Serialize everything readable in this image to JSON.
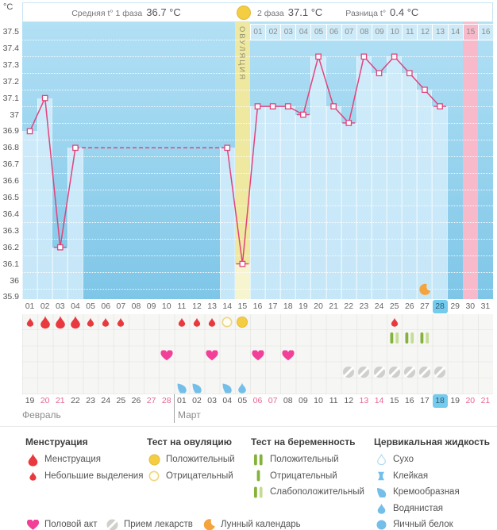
{
  "axis_unit": "°C",
  "header": {
    "phase1_label": "Средняя t° 1 фаза",
    "phase1_value": "36.7 °C",
    "phase2_label": "2 фаза",
    "phase2_value": "37.1 °C",
    "diff_label": "Разница t°",
    "diff_value": "0.4 °C"
  },
  "ovulation_column": {
    "label": "ОВУЛЯЦИЯ",
    "day": 15
  },
  "colors": {
    "accent_pink": "#e0447c",
    "menses_red": "#e9393f",
    "heart_pink": "#f23f97",
    "positive_yellow": "#f4cd43",
    "preg_dark": "#84b23a",
    "preg_light": "#c6dc96",
    "fluid_blue": "#74bfe9",
    "moon_orange": "#f5a33c",
    "today_blue": "#74cbed",
    "weekend_red": "#e8648f",
    "ovulation_column_yellow": "#efe8a0",
    "expected_column_pink": "#f8bacb"
  },
  "chart_data": {
    "type": "line",
    "title": "График базальной температуры",
    "ylabel": "°C",
    "ylim": [
      35.9,
      37.5
    ],
    "grid": "dotted white horizontal lines every 0.1 °C",
    "y_ticks": [
      "37.5",
      "37.4",
      "37.3",
      "37.2",
      "37.1",
      "37",
      "36.9",
      "36.8",
      "36.7",
      "36.6",
      "36.5",
      "36.4",
      "36.3",
      "36.2",
      "36.1",
      "36",
      "35.9"
    ],
    "x_days": [
      "01",
      "02",
      "03",
      "04",
      "05",
      "06",
      "07",
      "08",
      "09",
      "10",
      "11",
      "12",
      "13",
      "14",
      "15",
      "16",
      "17",
      "18",
      "19",
      "20",
      "21",
      "22",
      "23",
      "24",
      "25",
      "26",
      "27",
      "28",
      "29",
      "30",
      "31"
    ],
    "points": [
      {
        "day": 1,
        "t": 36.9
      },
      {
        "day": 2,
        "t": 37.1
      },
      {
        "day": 3,
        "t": 36.2
      },
      {
        "day": 4,
        "t": 36.8
      },
      {
        "day": 14,
        "t": 36.8
      },
      {
        "day": 15,
        "t": 36.1
      },
      {
        "day": 16,
        "t": 37.05
      },
      {
        "day": 17,
        "t": 37.05
      },
      {
        "day": 18,
        "t": 37.05
      },
      {
        "day": 19,
        "t": 37.0
      },
      {
        "day": 20,
        "t": 37.35
      },
      {
        "day": 21,
        "t": 37.05
      },
      {
        "day": 22,
        "t": 36.95
      },
      {
        "day": 23,
        "t": 37.35
      },
      {
        "day": 24,
        "t": 37.25
      },
      {
        "day": 25,
        "t": 37.35
      },
      {
        "day": 26,
        "t": 37.25
      },
      {
        "day": 27,
        "t": 37.15
      },
      {
        "day": 28,
        "t": 37.05
      }
    ],
    "missing_days_dashed_between": [
      4,
      14
    ],
    "underline_marker_days": [
      3,
      15,
      19,
      22,
      28
    ],
    "ovulation_day": 15,
    "expected_column_day": 30,
    "today_day": 28,
    "dpo_labels": [
      "01",
      "02",
      "03",
      "04",
      "05",
      "06",
      "07",
      "08",
      "09",
      "10",
      "11",
      "12",
      "13",
      "14",
      "15",
      "16"
    ],
    "dpo_highlight": "15"
  },
  "events": {
    "menstruation": [
      {
        "day": 1,
        "size": "small"
      },
      {
        "day": 2,
        "size": "large"
      },
      {
        "day": 3,
        "size": "large"
      },
      {
        "day": 4,
        "size": "large"
      },
      {
        "day": 5,
        "size": "small"
      },
      {
        "day": 6,
        "size": "small"
      },
      {
        "day": 7,
        "size": "small"
      },
      {
        "day": 11,
        "size": "small"
      },
      {
        "day": 12,
        "size": "small"
      },
      {
        "day": 13,
        "size": "small"
      },
      {
        "day": 25,
        "size": "small"
      }
    ],
    "ovulation_tests": [
      {
        "day": 14,
        "result": "negative"
      },
      {
        "day": 15,
        "result": "positive"
      }
    ],
    "pregnancy_tests": [
      {
        "day": 25,
        "result": "weak_positive"
      },
      {
        "day": 26,
        "result": "weak_positive"
      },
      {
        "day": 27,
        "result": "weak_positive"
      }
    ],
    "intercourse_days": [
      10,
      13,
      16,
      18
    ],
    "medication_days": [
      22,
      23,
      24,
      25,
      26,
      27,
      28
    ],
    "cervical_fluid": [
      {
        "day": 11,
        "type": "creamy"
      },
      {
        "day": 12,
        "type": "creamy"
      },
      {
        "day": 14,
        "type": "creamy"
      },
      {
        "day": 15,
        "type": "watery"
      }
    ],
    "moon_day": 27
  },
  "calendar": {
    "months": [
      {
        "name": "Февраль",
        "dates": [
          "19",
          "20",
          "21",
          "22",
          "23",
          "24",
          "25",
          "26",
          "27",
          "28"
        ],
        "weekend": [
          "20",
          "21",
          "27",
          "28"
        ]
      },
      {
        "name": "Март",
        "dates": [
          "01",
          "02",
          "03",
          "04",
          "05",
          "06",
          "07",
          "08",
          "09",
          "10",
          "11",
          "12",
          "13",
          "14",
          "15",
          "16",
          "17",
          "18",
          "19",
          "20",
          "21"
        ],
        "weekend": [
          "06",
          "07",
          "13",
          "14",
          "20",
          "21"
        ],
        "today": "18"
      }
    ]
  },
  "legend": {
    "sections": [
      {
        "title": "Менструация",
        "items": [
          {
            "icon": "drop-large",
            "label": "Менструация"
          },
          {
            "icon": "drop-small",
            "label": "Небольшие выделения"
          }
        ]
      },
      {
        "title": "Тест на овуляцию",
        "items": [
          {
            "icon": "circle-filled",
            "label": "Положительный"
          },
          {
            "icon": "circle-outline",
            "label": "Отрицательный"
          }
        ]
      },
      {
        "title": "Тест на беременность",
        "items": [
          {
            "icon": "bars-positive",
            "label": "Положительный"
          },
          {
            "icon": "bar-negative",
            "label": "Отрицательный"
          },
          {
            "icon": "bars-weak",
            "label": "Слабоположительный"
          }
        ]
      },
      {
        "title": "Цервикальная жидкость",
        "items": [
          {
            "icon": "drop-outline",
            "label": "Сухо"
          },
          {
            "icon": "sticky",
            "label": "Клейкая"
          },
          {
            "icon": "comma",
            "label": "Кремообразная"
          },
          {
            "icon": "drop-filled",
            "label": "Водянистая"
          },
          {
            "icon": "circle-blue",
            "label": "Яичный белок"
          }
        ]
      }
    ],
    "footer_items": [
      {
        "icon": "heart",
        "label": "Половой акт"
      },
      {
        "icon": "pill",
        "label": "Прием лекарств"
      },
      {
        "icon": "moon",
        "label": "Лунный календарь"
      }
    ]
  }
}
